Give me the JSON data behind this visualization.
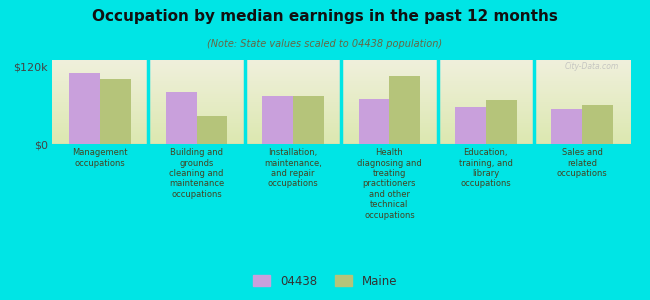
{
  "title": "Occupation by median earnings in the past 12 months",
  "subtitle": "(Note: State values scaled to 04438 population)",
  "background_color": "#00e5e5",
  "plot_bg_color_top": "#f0f0dc",
  "plot_bg_color_bottom": "#dce8b0",
  "categories": [
    "Management\noccupations",
    "Building and\ngrounds\ncleaning and\nmaintenance\noccupations",
    "Installation,\nmaintenance,\nand repair\noccupations",
    "Health\ndiagnosing and\ntreating\npractitioners\nand other\ntechnical\noccupations",
    "Education,\ntraining, and\nlibrary\noccupations",
    "Sales and\nrelated\noccupations"
  ],
  "values_04438": [
    110000,
    80000,
    75000,
    70000,
    58000,
    54000
  ],
  "values_maine": [
    100000,
    44000,
    75000,
    105000,
    68000,
    60000
  ],
  "color_04438": "#c9a0dc",
  "color_maine": "#b5c47a",
  "ylim": [
    0,
    130000
  ],
  "yticks": [
    0,
    120000
  ],
  "ytick_labels": [
    "$0",
    "$120k"
  ],
  "legend_04438": "04438",
  "legend_maine": "Maine",
  "watermark": "City-Data.com"
}
